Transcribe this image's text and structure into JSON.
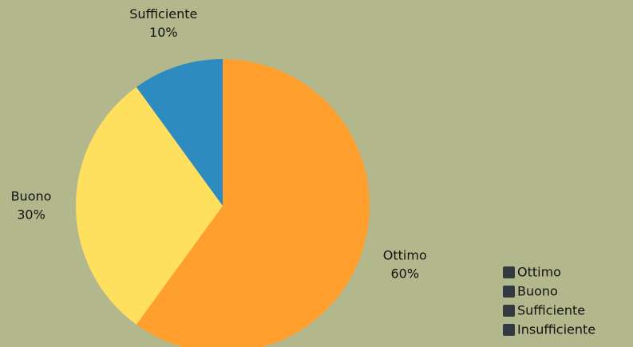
{
  "chart_data": {
    "type": "pie",
    "categories": [
      "Ottimo",
      "Buono",
      "Sufficiente",
      "Insufficiente"
    ],
    "values": [
      60,
      30,
      10,
      0
    ],
    "value_labels": [
      "60%",
      "30%",
      "10%",
      null
    ],
    "colors": [
      "#ff9f2d",
      "#ffdf5e",
      "#2e8bc0",
      "#7a3b9c"
    ],
    "legend_color": "#333a3f",
    "legend": "bottom-right"
  }
}
